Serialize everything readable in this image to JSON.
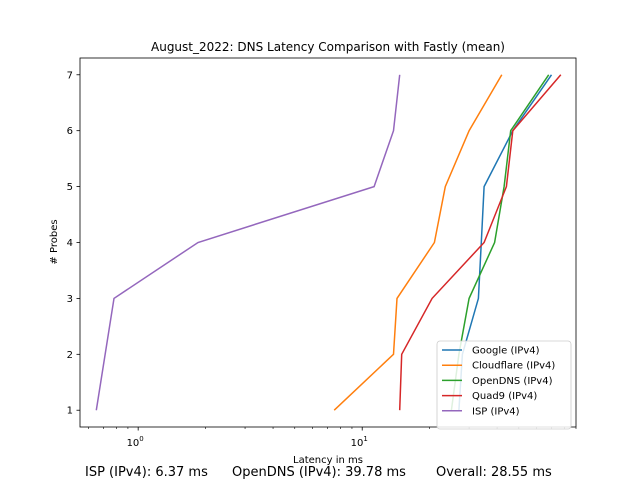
{
  "chart_data": {
    "type": "line",
    "title": "August_2022: DNS Latency Comparison with Fastly (mean)",
    "xlabel": "Latency in ms",
    "ylabel": "# Probes",
    "xscale": "log",
    "xlim": [
      0.55,
      90
    ],
    "ylim": [
      0.7,
      7.3
    ],
    "x_tick_labels": [
      "10^0",
      "10^1"
    ],
    "y_ticks": [
      1,
      2,
      3,
      4,
      5,
      6,
      7
    ],
    "legend_position": "lower-right",
    "series": [
      {
        "name": "Google (IPv4)",
        "color": "#1f77b4",
        "points": [
          [
            27,
            1
          ],
          [
            28,
            2
          ],
          [
            33,
            3
          ],
          [
            34,
            4
          ],
          [
            35,
            5
          ],
          [
            47,
            6
          ],
          [
            70,
            7
          ]
        ]
      },
      {
        "name": "Cloudflare (IPv4)",
        "color": "#ff7f0e",
        "points": [
          [
            7.5,
            1
          ],
          [
            13.8,
            2
          ],
          [
            14.3,
            3
          ],
          [
            21,
            4
          ],
          [
            23.5,
            5
          ],
          [
            30,
            6
          ],
          [
            42,
            7
          ]
        ]
      },
      {
        "name": "OpenDNS (IPv4)",
        "color": "#2ca02c",
        "points": [
          [
            25,
            1
          ],
          [
            27,
            2
          ],
          [
            30,
            3
          ],
          [
            39,
            4
          ],
          [
            43,
            5
          ],
          [
            46,
            6
          ],
          [
            68,
            7
          ]
        ]
      },
      {
        "name": "Quad9 (IPv4)",
        "color": "#d62728",
        "points": [
          [
            14.7,
            1
          ],
          [
            15,
            2
          ],
          [
            20.5,
            3
          ],
          [
            35,
            4
          ],
          [
            44,
            5
          ],
          [
            47,
            6
          ],
          [
            77,
            7
          ]
        ]
      },
      {
        "name": "ISP (IPv4)",
        "color": "#9467bd",
        "points": [
          [
            0.65,
            1
          ],
          [
            0.78,
            3
          ],
          [
            1.85,
            4
          ],
          [
            11.3,
            5
          ],
          [
            13.8,
            6
          ],
          [
            14.7,
            7
          ]
        ]
      }
    ]
  },
  "footer": {
    "isp": "ISP (IPv4): 6.37 ms",
    "opendns": "OpenDNS (IPv4): 39.78 ms",
    "overall": "Overall: 28.55 ms"
  }
}
